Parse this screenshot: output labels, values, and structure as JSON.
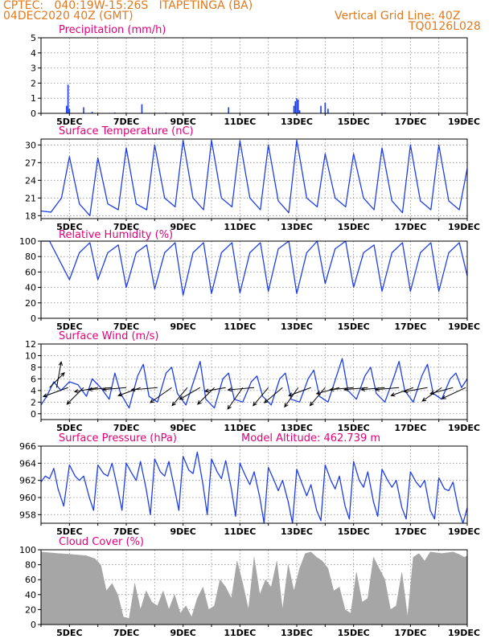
{
  "header": {
    "line1": "CPTEC:   040:19W-15:26S   ITAPETINGA (BA)",
    "line2": "04DEC2020 40Z (GMT)",
    "grid_note": "Vertical Grid Line: 40Z",
    "code": "TQ0126L028"
  },
  "colors": {
    "header": "#e07a1f",
    "title": "#e0007a",
    "series": "#1f3fe6",
    "cloud": "#a6a6a6",
    "grid": "#8c8c8c"
  },
  "chart_data": [
    {
      "type": "bar",
      "title": "Precipitation (mm/h)",
      "ylim": [
        0,
        5
      ],
      "yticks": [
        0,
        1,
        2,
        3,
        4,
        5
      ],
      "xlim": [
        4,
        19
      ],
      "x_tick_labels": [
        "5DEC",
        "7DEC",
        "9DEC",
        "11DEC",
        "13DEC",
        "15DEC",
        "17DEC",
        "19DEC"
      ],
      "x_tick_days": [
        5,
        7,
        9,
        11,
        13,
        15,
        17,
        19
      ],
      "bars": [
        {
          "day": 4.9,
          "value": 0.5
        },
        {
          "day": 4.95,
          "value": 1.9
        },
        {
          "day": 5.0,
          "value": 0.3
        },
        {
          "day": 5.5,
          "value": 0.4
        },
        {
          "day": 5.8,
          "value": 0.1
        },
        {
          "day": 6.6,
          "value": 0.05
        },
        {
          "day": 7.55,
          "value": 0.6
        },
        {
          "day": 8.4,
          "value": 0.05
        },
        {
          "day": 10.6,
          "value": 0.4
        },
        {
          "day": 12.9,
          "value": 0.5
        },
        {
          "day": 12.95,
          "value": 0.8
        },
        {
          "day": 13.0,
          "value": 1.0
        },
        {
          "day": 13.05,
          "value": 0.9
        },
        {
          "day": 13.1,
          "value": 0.2
        },
        {
          "day": 13.85,
          "value": 0.5
        },
        {
          "day": 14.0,
          "value": 0.7
        },
        {
          "day": 14.1,
          "value": 0.3
        },
        {
          "day": 14.8,
          "value": 0.05
        },
        {
          "day": 16.1,
          "value": 0.05
        },
        {
          "day": 17.3,
          "value": 0.05
        }
      ]
    },
    {
      "type": "line",
      "title": "Surface Temperature (nC)",
      "ylim": [
        17.5,
        31
      ],
      "yticks": [
        18,
        21,
        24,
        27,
        30
      ],
      "xlim": [
        4,
        19
      ],
      "x_tick_labels": [
        "5DEC",
        "7DEC",
        "9DEC",
        "11DEC",
        "13DEC",
        "15DEC",
        "17DEC",
        "19DEC"
      ],
      "x_tick_days": [
        5,
        7,
        9,
        11,
        13,
        15,
        17,
        19
      ],
      "x": [
        4.0,
        4.35,
        4.72,
        5.0,
        5.35,
        5.72,
        6.0,
        6.35,
        6.72,
        7.0,
        7.35,
        7.72,
        8.0,
        8.35,
        8.72,
        9.0,
        9.35,
        9.72,
        10.0,
        10.35,
        10.72,
        11.0,
        11.35,
        11.72,
        12.0,
        12.35,
        12.72,
        13.0,
        13.35,
        13.72,
        14.0,
        14.35,
        14.72,
        15.0,
        15.35,
        15.72,
        16.0,
        16.35,
        16.72,
        17.0,
        17.35,
        17.72,
        18.0,
        18.35,
        18.72,
        19.0
      ],
      "values": [
        18.8,
        18.6,
        21.0,
        28.0,
        20.0,
        18.0,
        27.8,
        20.0,
        19.0,
        29.5,
        20.0,
        19.0,
        30.0,
        21.0,
        19.5,
        30.8,
        21.0,
        19.0,
        30.8,
        21.0,
        19.5,
        30.7,
        21.0,
        19.0,
        30.0,
        20.5,
        18.5,
        30.8,
        21.0,
        19.5,
        28.5,
        21.0,
        19.5,
        28.5,
        21.0,
        19.0,
        29.5,
        20.5,
        18.5,
        30.0,
        20.5,
        19.0,
        30.0,
        20.5,
        19.0,
        26.0
      ]
    },
    {
      "type": "line",
      "title": "Relative Humidity (%)",
      "ylim": [
        0,
        100
      ],
      "yticks": [
        0,
        20,
        40,
        60,
        80,
        100
      ],
      "xlim": [
        4,
        19
      ],
      "x_tick_labels": [
        "5DEC",
        "7DEC",
        "9DEC",
        "11DEC",
        "13DEC",
        "15DEC",
        "17DEC",
        "19DEC"
      ],
      "x_tick_days": [
        5,
        7,
        9,
        11,
        13,
        15,
        17,
        19
      ],
      "x": [
        4.0,
        4.3,
        4.72,
        5.0,
        5.35,
        5.72,
        6.0,
        6.35,
        6.72,
        7.0,
        7.35,
        7.72,
        8.0,
        8.35,
        8.72,
        9.0,
        9.35,
        9.72,
        10.0,
        10.35,
        10.72,
        11.0,
        11.35,
        11.72,
        12.0,
        12.35,
        12.72,
        13.0,
        13.35,
        13.72,
        14.0,
        14.35,
        14.72,
        15.0,
        15.35,
        15.72,
        16.0,
        16.35,
        16.72,
        17.0,
        17.35,
        17.72,
        18.0,
        18.35,
        18.72,
        19.0
      ],
      "values": [
        100,
        100,
        70,
        50,
        85,
        98,
        50,
        85,
        95,
        40,
        85,
        95,
        38,
        85,
        98,
        30,
        85,
        98,
        32,
        85,
        98,
        33,
        85,
        98,
        35,
        90,
        100,
        32,
        85,
        100,
        45,
        90,
        100,
        40,
        85,
        95,
        35,
        85,
        98,
        35,
        85,
        98,
        35,
        85,
        98,
        55
      ]
    },
    {
      "type": "line",
      "title": "Surface Wind (m/s)",
      "ylim": [
        -1,
        12
      ],
      "yticks": [
        0,
        2,
        4,
        6,
        8,
        10,
        12
      ],
      "xlim": [
        4,
        19
      ],
      "x_tick_labels": [
        "5DEC",
        "7DEC",
        "9DEC",
        "11DEC",
        "13DEC",
        "15DEC",
        "17DEC",
        "19DEC"
      ],
      "x_tick_days": [
        5,
        7,
        9,
        11,
        13,
        15,
        17,
        19
      ],
      "x": [
        4.0,
        4.2,
        4.45,
        4.7,
        5.0,
        5.3,
        5.6,
        5.8,
        6.1,
        6.4,
        6.6,
        6.8,
        7.1,
        7.4,
        7.6,
        7.8,
        8.1,
        8.4,
        8.6,
        8.8,
        9.1,
        9.4,
        9.6,
        9.8,
        10.1,
        10.4,
        10.6,
        10.8,
        11.1,
        11.4,
        11.6,
        11.8,
        12.1,
        12.4,
        12.6,
        12.8,
        13.1,
        13.4,
        13.6,
        13.8,
        14.1,
        14.4,
        14.6,
        14.8,
        15.1,
        15.4,
        15.6,
        15.8,
        16.1,
        16.4,
        16.6,
        16.8,
        17.1,
        17.4,
        17.6,
        17.8,
        18.1,
        18.4,
        18.6,
        18.8,
        19.0
      ],
      "values": [
        1.5,
        3.0,
        5.5,
        4.0,
        5.5,
        5.0,
        3.0,
        6.0,
        4.5,
        2.5,
        7.0,
        3.5,
        1.0,
        6.5,
        8.5,
        3.0,
        2.0,
        7.0,
        8.0,
        3.5,
        1.5,
        6.0,
        9.0,
        2.5,
        1.0,
        6.0,
        7.0,
        2.5,
        2.0,
        5.5,
        6.5,
        3.0,
        1.5,
        6.0,
        7.0,
        2.5,
        2.0,
        6.0,
        7.5,
        3.0,
        2.0,
        6.5,
        9.5,
        4.0,
        2.5,
        6.5,
        8.0,
        3.5,
        2.0,
        6.0,
        9.0,
        4.0,
        2.0,
        6.5,
        8.5,
        3.5,
        2.5,
        6.0,
        7.0,
        4.5,
        6.0
      ],
      "wind_vectors": [
        {
          "day": 4.3,
          "speed": 4.0,
          "dir_deg": 45
        },
        {
          "day": 4.55,
          "speed": 5.0,
          "dir_deg": 80
        },
        {
          "day": 4.95,
          "speed": 5.0,
          "dir_deg": 200
        },
        {
          "day": 5.5,
          "speed": 4.5,
          "dir_deg": 225
        },
        {
          "day": 6.0,
          "speed": 4.5,
          "dir_deg": 190
        },
        {
          "day": 6.5,
          "speed": 4.5,
          "dir_deg": 185
        },
        {
          "day": 7.0,
          "speed": 4.5,
          "dir_deg": 185
        },
        {
          "day": 7.5,
          "speed": 4.5,
          "dir_deg": 200
        },
        {
          "day": 8.1,
          "speed": 5.0,
          "dir_deg": 185
        },
        {
          "day": 8.6,
          "speed": 5.0,
          "dir_deg": 215
        },
        {
          "day": 9.15,
          "speed": 4.5,
          "dir_deg": 230
        },
        {
          "day": 9.6,
          "speed": 4.5,
          "dir_deg": 210
        },
        {
          "day": 10.1,
          "speed": 4.5,
          "dir_deg": 225
        },
        {
          "day": 10.5,
          "speed": 4.0,
          "dir_deg": 190
        },
        {
          "day": 11.1,
          "speed": 5.0,
          "dir_deg": 235
        },
        {
          "day": 11.5,
          "speed": 5.0,
          "dir_deg": 185
        },
        {
          "day": 12.0,
          "speed": 4.5,
          "dir_deg": 230
        },
        {
          "day": 12.5,
          "speed": 4.5,
          "dir_deg": 220
        },
        {
          "day": 13.05,
          "speed": 4.5,
          "dir_deg": 235
        },
        {
          "day": 13.5,
          "speed": 4.5,
          "dir_deg": 200
        },
        {
          "day": 14.0,
          "speed": 4.5,
          "dir_deg": 230
        },
        {
          "day": 14.5,
          "speed": 4.5,
          "dir_deg": 195
        },
        {
          "day": 15.0,
          "speed": 4.5,
          "dir_deg": 185
        },
        {
          "day": 15.5,
          "speed": 4.5,
          "dir_deg": 185
        },
        {
          "day": 16.1,
          "speed": 4.5,
          "dir_deg": 185
        },
        {
          "day": 16.6,
          "speed": 4.5,
          "dir_deg": 185
        },
        {
          "day": 17.1,
          "speed": 4.5,
          "dir_deg": 200
        },
        {
          "day": 17.6,
          "speed": 4.5,
          "dir_deg": 190
        },
        {
          "day": 18.1,
          "speed": 4.5,
          "dir_deg": 215
        },
        {
          "day": 18.5,
          "speed": 4.5,
          "dir_deg": 195
        },
        {
          "day": 18.95,
          "speed": 5.0,
          "dir_deg": 205
        }
      ]
    },
    {
      "type": "line",
      "title": "Surface Pressure (hPa)",
      "subtitle": "Model Altitude: 462.739 m",
      "ylim": [
        957,
        966
      ],
      "yticks": [
        958,
        960,
        962,
        964,
        966
      ],
      "xlim": [
        4,
        19
      ],
      "x_tick_labels": [
        "5DEC",
        "7DEC",
        "9DEC",
        "11DEC",
        "13DEC",
        "15DEC",
        "17DEC",
        "19DEC"
      ],
      "x_tick_days": [
        5,
        7,
        9,
        11,
        13,
        15,
        17,
        19
      ],
      "x": [
        4.0,
        4.15,
        4.3,
        4.45,
        4.6,
        4.8,
        5.0,
        5.2,
        5.35,
        5.5,
        5.7,
        5.85,
        6.0,
        6.2,
        6.35,
        6.5,
        6.7,
        6.85,
        7.0,
        7.2,
        7.35,
        7.5,
        7.7,
        7.85,
        8.0,
        8.2,
        8.35,
        8.5,
        8.7,
        8.85,
        9.0,
        9.2,
        9.35,
        9.5,
        9.7,
        9.85,
        10.0,
        10.2,
        10.35,
        10.5,
        10.7,
        10.85,
        11.0,
        11.2,
        11.35,
        11.5,
        11.7,
        11.85,
        12.0,
        12.2,
        12.35,
        12.5,
        12.7,
        12.85,
        13.0,
        13.2,
        13.35,
        13.5,
        13.7,
        13.85,
        14.0,
        14.2,
        14.35,
        14.5,
        14.7,
        14.85,
        15.0,
        15.2,
        15.35,
        15.5,
        15.7,
        15.85,
        16.0,
        16.2,
        16.35,
        16.5,
        16.7,
        16.85,
        17.0,
        17.2,
        17.35,
        17.5,
        17.7,
        17.85,
        18.0,
        18.2,
        18.35,
        18.5,
        18.7,
        18.85,
        19.0
      ],
      "values": [
        961.8,
        962.5,
        962.2,
        963.4,
        961.0,
        959.0,
        963.8,
        962.5,
        962.0,
        962.5,
        960.0,
        958.5,
        963.8,
        962.8,
        962.5,
        964.0,
        961.0,
        958.5,
        964.0,
        962.8,
        962.0,
        964.2,
        961.0,
        958.0,
        964.5,
        963.0,
        962.5,
        964.2,
        961.0,
        958.5,
        964.8,
        963.2,
        962.8,
        965.3,
        961.5,
        958.0,
        964.5,
        963.0,
        962.2,
        964.3,
        961.0,
        957.8,
        964.0,
        962.5,
        961.5,
        963.0,
        960.0,
        957.0,
        963.5,
        962.0,
        960.8,
        962.0,
        959.5,
        957.0,
        963.3,
        961.5,
        960.2,
        961.5,
        958.5,
        957.3,
        963.8,
        962.0,
        961.0,
        962.5,
        959.0,
        957.5,
        964.2,
        962.0,
        961.2,
        963.0,
        959.5,
        957.8,
        963.3,
        962.0,
        961.2,
        962.0,
        958.8,
        957.5,
        963.0,
        961.8,
        961.2,
        962.0,
        958.5,
        957.5,
        962.3,
        961.0,
        960.8,
        961.8,
        958.5,
        957.0,
        958.8
      ]
    },
    {
      "type": "area",
      "title": "Cloud Cover (%)",
      "ylim": [
        0,
        100
      ],
      "yticks": [
        0,
        20,
        40,
        60,
        80,
        100
      ],
      "xlim": [
        4,
        19
      ],
      "x_tick_labels": [
        "5DEC",
        "7DEC",
        "9DEC",
        "11DEC",
        "13DEC",
        "15DEC",
        "17DEC",
        "19DEC"
      ],
      "x_tick_days": [
        5,
        7,
        9,
        11,
        13,
        15,
        17,
        19
      ],
      "x": [
        4.0,
        4.3,
        4.6,
        5.0,
        5.3,
        5.6,
        5.9,
        6.1,
        6.3,
        6.5,
        6.7,
        6.9,
        7.1,
        7.3,
        7.5,
        7.7,
        7.9,
        8.1,
        8.3,
        8.5,
        8.7,
        8.9,
        9.1,
        9.3,
        9.5,
        9.7,
        9.9,
        10.1,
        10.3,
        10.5,
        10.7,
        10.9,
        11.1,
        11.3,
        11.5,
        11.7,
        11.9,
        12.1,
        12.3,
        12.5,
        12.7,
        12.9,
        13.1,
        13.3,
        13.5,
        13.7,
        13.9,
        14.1,
        14.3,
        14.5,
        14.7,
        14.9,
        15.1,
        15.3,
        15.5,
        15.7,
        15.9,
        16.1,
        16.3,
        16.5,
        16.7,
        16.9,
        17.1,
        17.3,
        17.5,
        17.7,
        17.9,
        18.1,
        18.3,
        18.5,
        18.7,
        18.9,
        19.0
      ],
      "values": [
        97,
        96,
        95,
        94,
        93,
        92,
        88,
        80,
        45,
        55,
        40,
        10,
        8,
        55,
        20,
        45,
        30,
        25,
        45,
        20,
        40,
        15,
        25,
        10,
        35,
        50,
        20,
        25,
        60,
        50,
        35,
        85,
        55,
        20,
        90,
        40,
        60,
        50,
        85,
        20,
        80,
        45,
        75,
        95,
        97,
        90,
        85,
        75,
        45,
        50,
        20,
        15,
        70,
        30,
        35,
        90,
        75,
        60,
        20,
        25,
        70,
        10,
        90,
        95,
        85,
        97,
        96,
        95,
        96,
        97,
        94,
        90,
        92
      ]
    }
  ]
}
